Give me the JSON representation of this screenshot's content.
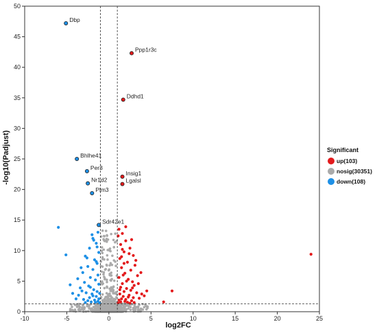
{
  "chart_data": {
    "type": "scatter",
    "xlabel": "log2FC",
    "ylabel": "-log10(Padjust)",
    "xlim": [
      -10,
      25
    ],
    "ylim": [
      0,
      50
    ],
    "xticks": [
      -10,
      -5,
      0,
      5,
      10,
      15,
      20,
      25
    ],
    "yticks": [
      0,
      5,
      10,
      15,
      20,
      25,
      30,
      35,
      40,
      45,
      50
    ],
    "thresholds": {
      "x": [
        -1,
        1
      ],
      "y": 1.3
    },
    "grid": false,
    "legend": {
      "title": "Significant",
      "placement": "right",
      "entries": [
        {
          "label": "up(103)",
          "color": "#e31a1c"
        },
        {
          "label": "nosig(30351)",
          "color": "#aaaaaa"
        },
        {
          "label": "down(108)",
          "color": "#1e90e6"
        }
      ]
    },
    "labeled_points": [
      {
        "gene": "Dbp",
        "x": -5.1,
        "y": 47.2,
        "group": "down"
      },
      {
        "gene": "Ppp1r3c",
        "x": 2.7,
        "y": 42.3,
        "group": "up"
      },
      {
        "gene": "Ddhd1",
        "x": 1.7,
        "y": 34.7,
        "group": "up"
      },
      {
        "gene": "Bhlhe41",
        "x": -3.8,
        "y": 25.0,
        "group": "down"
      },
      {
        "gene": "Per3",
        "x": -2.6,
        "y": 23.0,
        "group": "down"
      },
      {
        "gene": "Insig1",
        "x": 1.6,
        "y": 22.1,
        "group": "up"
      },
      {
        "gene": "Nr1d2",
        "x": -2.5,
        "y": 21.0,
        "group": "down"
      },
      {
        "gene": "Lgalsl",
        "x": 1.6,
        "y": 20.9,
        "group": "up"
      },
      {
        "gene": "Plm3",
        "x": -2.0,
        "y": 19.4,
        "group": "down"
      },
      {
        "gene": "Sdr42e1",
        "x": -1.2,
        "y": 14.2,
        "group": "down"
      }
    ],
    "series": [
      {
        "group": "up",
        "color": "#e31a1c",
        "points": [
          [
            1.2,
            13.5
          ],
          [
            1.6,
            12.8
          ],
          [
            2.0,
            11.6
          ],
          [
            1.4,
            11.0
          ],
          [
            2.5,
            10.4
          ],
          [
            1.8,
            9.8
          ],
          [
            2.9,
            9.2
          ],
          [
            1.3,
            8.7
          ],
          [
            2.2,
            8.1
          ],
          [
            3.1,
            7.6
          ],
          [
            1.5,
            7.2
          ],
          [
            2.6,
            6.8
          ],
          [
            1.9,
            6.3
          ],
          [
            3.4,
            5.9
          ],
          [
            1.2,
            5.6
          ],
          [
            2.3,
            5.3
          ],
          [
            2.8,
            4.9
          ],
          [
            1.6,
            4.6
          ],
          [
            3.0,
            4.3
          ],
          [
            1.4,
            4.0
          ],
          [
            2.1,
            3.8
          ],
          [
            2.6,
            3.5
          ],
          [
            1.8,
            3.3
          ],
          [
            3.3,
            3.1
          ],
          [
            1.3,
            2.9
          ],
          [
            2.4,
            2.7
          ],
          [
            1.7,
            2.5
          ],
          [
            2.9,
            2.3
          ],
          [
            1.5,
            2.1
          ],
          [
            2.0,
            2.0
          ],
          [
            3.6,
            2.2
          ],
          [
            1.2,
            1.9
          ],
          [
            2.7,
            1.8
          ],
          [
            1.9,
            1.7
          ],
          [
            4.2,
            2.6
          ],
          [
            1.4,
            1.6
          ],
          [
            2.2,
            1.55
          ],
          [
            3.0,
            1.5
          ],
          [
            1.1,
            1.45
          ],
          [
            2.5,
            1.4
          ],
          [
            4.5,
            3.4
          ],
          [
            1.6,
            10.2
          ],
          [
            2.4,
            9.5
          ],
          [
            3.8,
            6.4
          ],
          [
            1.1,
            12.4
          ],
          [
            2.0,
            13.9
          ],
          [
            3.2,
            8.4
          ],
          [
            2.7,
            11.8
          ],
          [
            1.7,
            6.0
          ],
          [
            3.5,
            4.6
          ],
          [
            6.5,
            1.6
          ],
          [
            7.5,
            3.4
          ],
          [
            24.0,
            9.4
          ],
          [
            2.8,
            3.9
          ],
          [
            1.3,
            3.6
          ],
          [
            2.1,
            5.0
          ],
          [
            1.8,
            7.9
          ],
          [
            3.9,
            2.9
          ],
          [
            2.3,
            2.4
          ],
          [
            1.5,
            9.0
          ]
        ]
      },
      {
        "group": "down",
        "color": "#1e90e6",
        "points": [
          [
            -1.3,
            13.0
          ],
          [
            -1.9,
            12.0
          ],
          [
            -1.5,
            11.2
          ],
          [
            -2.3,
            10.4
          ],
          [
            -1.2,
            9.7
          ],
          [
            -2.8,
            9.1
          ],
          [
            -1.7,
            8.5
          ],
          [
            -1.4,
            7.9
          ],
          [
            -2.5,
            7.4
          ],
          [
            -1.9,
            6.9
          ],
          [
            -3.1,
            6.4
          ],
          [
            -1.3,
            6.0
          ],
          [
            -2.2,
            5.6
          ],
          [
            -1.6,
            5.2
          ],
          [
            -2.9,
            4.8
          ],
          [
            -1.2,
            4.5
          ],
          [
            -2.4,
            4.2
          ],
          [
            -3.4,
            3.9
          ],
          [
            -1.8,
            3.6
          ],
          [
            -1.4,
            3.3
          ],
          [
            -2.7,
            3.1
          ],
          [
            -2.0,
            2.9
          ],
          [
            -3.6,
            2.7
          ],
          [
            -1.5,
            2.5
          ],
          [
            -2.3,
            2.3
          ],
          [
            -1.2,
            2.1
          ],
          [
            -3.0,
            2.0
          ],
          [
            -1.7,
            1.9
          ],
          [
            -2.5,
            1.8
          ],
          [
            -1.3,
            1.7
          ],
          [
            -3.9,
            2.1
          ],
          [
            -2.1,
            1.6
          ],
          [
            -1.6,
            1.55
          ],
          [
            -2.8,
            1.5
          ],
          [
            -1.1,
            1.45
          ],
          [
            -4.3,
            3.0
          ],
          [
            -6.0,
            13.8
          ],
          [
            -5.1,
            9.3
          ],
          [
            -4.6,
            4.4
          ],
          [
            -3.3,
            7.2
          ],
          [
            -2.0,
            12.6
          ],
          [
            -1.4,
            10.6
          ],
          [
            -2.6,
            8.8
          ],
          [
            -1.8,
            11.7
          ],
          [
            -3.7,
            5.4
          ],
          [
            -1.1,
            3.0
          ],
          [
            -2.2,
            4.0
          ],
          [
            -1.9,
            2.6
          ],
          [
            -3.2,
            3.4
          ],
          [
            -1.5,
            8.2
          ]
        ]
      }
    ]
  }
}
